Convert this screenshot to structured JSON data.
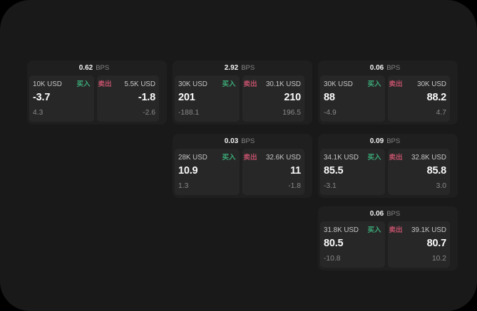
{
  "labels": {
    "buy": "买入",
    "sell": "卖出",
    "bps": "BPS"
  },
  "colors": {
    "buy": "#3caa78",
    "sell": "#be5069"
  },
  "cards": [
    {
      "bps": "0.62",
      "col": 1,
      "row": 1,
      "buy": {
        "size": "10K USD",
        "value": "-3.7",
        "sub": "4.3"
      },
      "sell": {
        "size": "5.5K USD",
        "value": "-1.8",
        "sub": "-2.6"
      }
    },
    {
      "bps": "2.92",
      "col": 2,
      "row": 1,
      "buy": {
        "size": "30K USD",
        "value": "201",
        "sub": "-188.1"
      },
      "sell": {
        "size": "30.1K USD",
        "value": "210",
        "sub": "196.5"
      }
    },
    {
      "bps": "0.06",
      "col": 3,
      "row": 1,
      "buy": {
        "size": "30K USD",
        "value": "88",
        "sub": "-4.9"
      },
      "sell": {
        "size": "30K USD",
        "value": "88.2",
        "sub": "4.7"
      }
    },
    {
      "bps": "0.03",
      "col": 2,
      "row": 2,
      "buy": {
        "size": "28K USD",
        "value": "10.9",
        "sub": "1.3"
      },
      "sell": {
        "size": "32.6K USD",
        "value": "11",
        "sub": "-1.8"
      }
    },
    {
      "bps": "0.09",
      "col": 3,
      "row": 2,
      "buy": {
        "size": "34.1K USD",
        "value": "85.5",
        "sub": "-3.1"
      },
      "sell": {
        "size": "32.8K USD",
        "value": "85.8",
        "sub": "3.0"
      }
    },
    {
      "bps": "0.06",
      "col": 3,
      "row": 3,
      "buy": {
        "size": "31.8K USD",
        "value": "80.5",
        "sub": "-10.8"
      },
      "sell": {
        "size": "39.1K USD",
        "value": "80.7",
        "sub": "10.2"
      }
    }
  ]
}
